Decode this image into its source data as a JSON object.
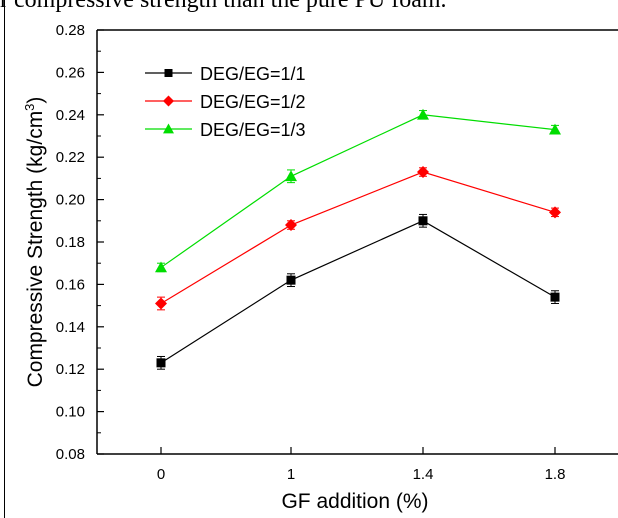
{
  "page": {
    "top_text": "r compressive strength than the pure PU foam."
  },
  "chart_data": {
    "type": "line",
    "categories": [
      "0",
      "1",
      "1.4",
      "1.8"
    ],
    "xlabel": "GF addition (%)",
    "ylabel_main": "Compressive Strength (kg/cm",
    "ylabel_sup": "3",
    "ylabel_close": ")",
    "ylim": [
      0.08,
      0.28
    ],
    "yticks": [
      "0.08",
      "0.10",
      "0.12",
      "0.14",
      "0.16",
      "0.18",
      "0.20",
      "0.22",
      "0.24",
      "0.26",
      "0.28"
    ],
    "grid": false,
    "legend_position": "top-left",
    "series": [
      {
        "name": "DEG/EG=1/1",
        "color": "#000000",
        "marker": "square",
        "values": [
          0.123,
          0.162,
          0.19,
          0.154
        ],
        "errors": [
          0.003,
          0.003,
          0.003,
          0.003
        ]
      },
      {
        "name": "DEG/EG=1/2",
        "color": "#ff0000",
        "marker": "diamond",
        "values": [
          0.151,
          0.188,
          0.213,
          0.194
        ],
        "errors": [
          0.003,
          0.002,
          0.002,
          0.002
        ]
      },
      {
        "name": "DEG/EG=1/3",
        "color": "#00dd00",
        "marker": "triangle",
        "values": [
          0.168,
          0.211,
          0.24,
          0.233
        ],
        "errors": [
          0.002,
          0.003,
          0.002,
          0.002
        ]
      }
    ]
  }
}
